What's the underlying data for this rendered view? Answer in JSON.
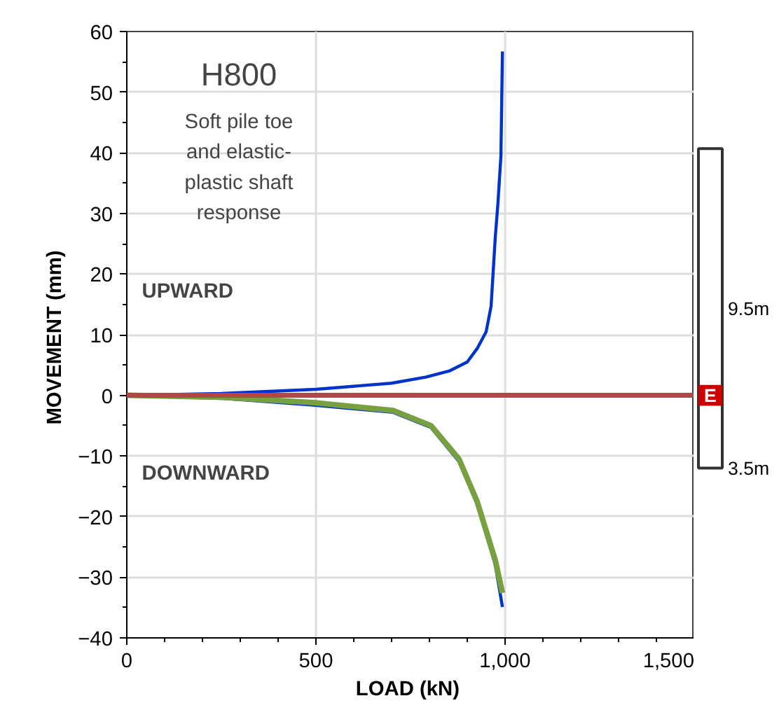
{
  "chart_data": {
    "type": "line",
    "title": "H800",
    "subtitle": "Soft pile toe\nand elastic-\nplastic shaft\nresponse",
    "xlabel": "LOAD  (kN)",
    "ylabel": "MOVEMENT  (mm)",
    "xlim": [
      0,
      1500
    ],
    "xticks": [
      0,
      500,
      {
        "value": 1000,
        "label": "1,000"
      },
      {
        "value": 1500,
        "label": "1,500"
      }
    ],
    "ylim": [
      -40,
      60
    ],
    "yticks": [
      -40,
      -30,
      -20,
      -10,
      0,
      10,
      20,
      30,
      40,
      50,
      60
    ],
    "grid": true,
    "ref_lines": [
      {
        "axis": "y",
        "value": 0,
        "color": "#b04848"
      }
    ],
    "annotations": [
      "UPWARD",
      "DOWNWARD",
      "9.5m",
      "E",
      "3.5m"
    ],
    "series": [
      {
        "color": "#0033cc",
        "x": [
          0,
          250,
          500,
          700,
          790,
          852,
          900,
          926,
          950,
          963,
          974,
          981,
          989,
          993
        ],
        "values": [
          0,
          0.3,
          1,
          2,
          3,
          4,
          5.5,
          7.7,
          10.5,
          14.7,
          26,
          31.6,
          39.5,
          56.7
        ]
      },
      {
        "color": "#0033cc",
        "x": [
          0,
          250,
          493,
          704,
          804,
          878,
          926,
          974,
          993
        ],
        "values": [
          0,
          -0.5,
          -1.6,
          -2.8,
          -5.3,
          -10.9,
          -17.9,
          -27.9,
          -34.9
        ]
      },
      {
        "color": "#77a040",
        "x": [
          0,
          250,
          493,
          704,
          804,
          878,
          926,
          974,
          993
        ],
        "values": [
          0,
          -0.3,
          -1.2,
          -2.5,
          -5,
          -10.5,
          -17.5,
          -27.2,
          -32.6
        ]
      }
    ]
  }
}
